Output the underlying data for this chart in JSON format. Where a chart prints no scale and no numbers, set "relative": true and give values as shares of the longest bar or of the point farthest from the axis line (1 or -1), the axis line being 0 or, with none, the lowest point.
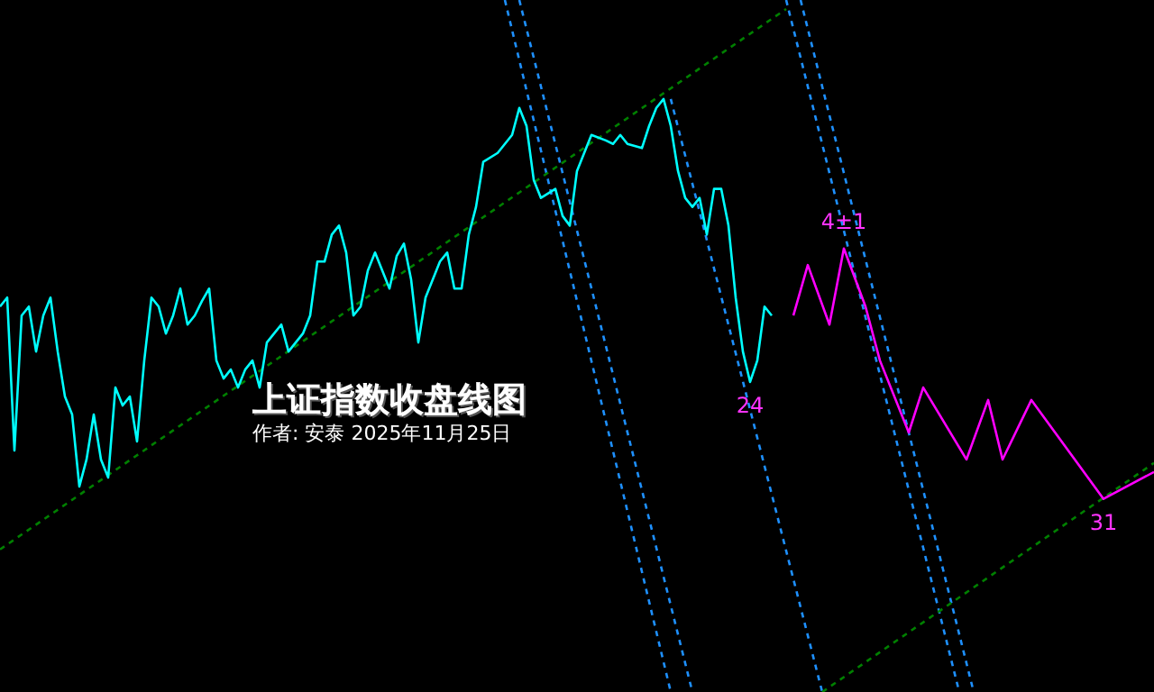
{
  "chart_data": {
    "type": "line",
    "title": "上证指数收盘线图",
    "subtitle": "作者: 安泰 2025年11月25日",
    "relative": true,
    "tick_labels": false,
    "categories": [
      null,
      null,
      null,
      null,
      null,
      null,
      null,
      null,
      null,
      null,
      null,
      null,
      null,
      null,
      null,
      null,
      null,
      null,
      null,
      null,
      null,
      null,
      null,
      null,
      null,
      null,
      null,
      null,
      null,
      null,
      null,
      null,
      null,
      null,
      null,
      null,
      null,
      null,
      null,
      null,
      null,
      null,
      null,
      null,
      null,
      null,
      null,
      null,
      null,
      null,
      null,
      null,
      null,
      null,
      null,
      null,
      null,
      null,
      null,
      null,
      null,
      null,
      null,
      null,
      null,
      null,
      null,
      null,
      null,
      null,
      null,
      null,
      null,
      null,
      null,
      null,
      null,
      null,
      null,
      null,
      null,
      null,
      null,
      null,
      null,
      null,
      null,
      null,
      null,
      null,
      null,
      null,
      null,
      null,
      null,
      null,
      null,
      null,
      null,
      null,
      null,
      null,
      null,
      null,
      null,
      null,
      null,
      null,
      null,
      null,
      null,
      null,
      null,
      null,
      null,
      null,
      null,
      null,
      null,
      null,
      null,
      null,
      null,
      null,
      null,
      null,
      null,
      null,
      null,
      null,
      null,
      null,
      null,
      null,
      null,
      null,
      null,
      null,
      null,
      null,
      null,
      null,
      null,
      null,
      null,
      null,
      null,
      null,
      null,
      null,
      null,
      null,
      null,
      null,
      null,
      null,
      null,
      null,
      null,
      null,
      null
    ],
    "series": [
      {
        "color": "#00ffff",
        "line_style": "solid",
        "values": [
          0.557,
          0.57,
          0.349,
          0.544,
          0.557,
          0.492,
          0.544,
          0.57,
          0.492,
          0.427,
          0.401,
          0.297,
          0.336,
          0.401,
          0.336,
          0.31,
          0.44,
          0.414,
          0.427,
          0.362,
          0.479,
          0.57,
          0.557,
          0.518,
          0.544,
          0.583,
          0.531,
          0.544,
          0.565,
          0.583,
          0.479,
          0.453,
          0.466,
          0.44,
          0.466,
          0.479,
          0.44,
          0.505,
          0.518,
          0.531,
          0.492,
          0.505,
          0.518,
          0.544,
          0.622,
          0.622,
          0.661,
          0.674,
          0.635,
          0.544,
          0.557,
          0.609,
          0.635,
          null,
          0.583,
          0.63,
          0.648,
          0.596,
          0.505,
          0.57,
          null,
          0.622,
          0.635,
          0.583,
          0.583,
          0.661,
          0.701,
          0.766,
          null,
          0.779,
          0.792,
          0.805,
          0.844,
          0.818,
          0.74,
          0.714,
          null,
          0.727,
          0.688,
          0.674,
          0.753,
          0.779,
          0.805,
          null,
          0.797,
          0.792,
          0.805,
          0.792,
          null,
          0.786,
          0.818,
          0.844,
          0.857,
          0.818,
          0.753,
          0.714,
          0.701,
          0.714,
          0.661,
          0.727,
          0.727,
          0.674,
          0.57,
          0.492,
          0.448,
          0.479,
          0.557,
          0.544,
          null,
          null,
          null,
          null,
          null,
          null,
          null,
          null,
          null,
          null,
          null,
          null,
          null,
          null,
          null,
          null,
          null,
          null,
          null,
          null,
          null,
          null,
          null,
          null,
          null,
          null,
          null,
          null,
          null,
          null,
          null,
          null,
          null,
          null,
          null,
          null,
          null,
          null,
          null,
          null,
          null,
          null,
          null,
          null,
          null,
          null,
          null,
          null,
          null,
          null,
          null,
          null,
          null
        ]
      },
      {
        "color": "#ff00ff",
        "line_style": "solid",
        "values": [
          null,
          null,
          null,
          null,
          null,
          null,
          null,
          null,
          null,
          null,
          null,
          null,
          null,
          null,
          null,
          null,
          null,
          null,
          null,
          null,
          null,
          null,
          null,
          null,
          null,
          null,
          null,
          null,
          null,
          null,
          null,
          null,
          null,
          null,
          null,
          null,
          null,
          null,
          null,
          null,
          null,
          null,
          null,
          null,
          null,
          null,
          null,
          null,
          null,
          null,
          null,
          null,
          null,
          null,
          null,
          null,
          null,
          null,
          null,
          null,
          null,
          null,
          null,
          null,
          null,
          null,
          null,
          null,
          null,
          null,
          null,
          null,
          null,
          null,
          null,
          null,
          null,
          null,
          null,
          null,
          null,
          null,
          null,
          null,
          null,
          null,
          null,
          null,
          null,
          null,
          null,
          null,
          null,
          null,
          null,
          null,
          null,
          null,
          null,
          null,
          null,
          null,
          null,
          null,
          null,
          null,
          null,
          null,
          null,
          null,
          0.544,
          null,
          0.617,
          null,
          null,
          0.531,
          null,
          0.641,
          null,
          null,
          0.557,
          null,
          0.479,
          null,
          null,
          null,
          0.375,
          null,
          0.44,
          null,
          null,
          null,
          null,
          null,
          0.336,
          null,
          null,
          0.422,
          null,
          0.336,
          null,
          null,
          null,
          0.422,
          null,
          null,
          null,
          null,
          null,
          null,
          null,
          null,
          null,
          0.279,
          null,
          null,
          null,
          null,
          null,
          null,
          0.318
        ]
      },
      {
        "color": "#008000",
        "line_style": "dashed",
        "values": [
          0.206,
          null,
          null,
          null,
          null,
          null,
          null,
          null,
          null,
          null,
          null,
          null,
          null,
          null,
          null,
          null,
          null,
          null,
          null,
          null,
          null,
          null,
          null,
          null,
          null,
          null,
          null,
          null,
          null,
          null,
          null,
          null,
          null,
          null,
          null,
          null,
          null,
          null,
          null,
          null,
          null,
          null,
          null,
          null,
          null,
          null,
          null,
          null,
          null,
          null,
          null,
          null,
          null,
          null,
          null,
          null,
          null,
          null,
          null,
          null,
          null,
          null,
          null,
          null,
          null,
          null,
          null,
          null,
          null,
          null,
          null,
          null,
          null,
          null,
          null,
          null,
          null,
          null,
          null,
          null,
          null,
          null,
          null,
          null,
          null,
          null,
          null,
          null,
          null,
          null,
          null,
          null,
          null,
          null,
          null,
          null,
          null,
          null,
          null,
          null,
          null,
          null,
          null,
          null,
          null,
          null,
          null,
          null,
          null,
          0.987,
          null,
          null,
          null,
          null,
          null,
          null,
          null,
          null,
          null,
          null,
          null,
          null,
          null,
          null,
          null,
          null,
          null,
          null,
          null,
          null,
          null,
          null,
          null,
          null,
          null,
          null,
          null,
          null,
          null,
          null,
          null,
          null,
          null,
          null,
          null,
          null,
          null,
          null,
          null,
          null,
          null,
          null,
          null,
          null,
          null,
          null,
          null,
          null,
          null,
          null,
          null
        ]
      },
      {
        "color": "#008000",
        "line_style": "dashed",
        "values": [
          null,
          null,
          null,
          null,
          null,
          null,
          null,
          null,
          null,
          null,
          null,
          null,
          null,
          null,
          null,
          null,
          null,
          null,
          null,
          null,
          null,
          null,
          null,
          null,
          null,
          null,
          null,
          null,
          null,
          null,
          null,
          null,
          null,
          null,
          null,
          null,
          null,
          null,
          null,
          null,
          null,
          null,
          null,
          null,
          null,
          null,
          null,
          null,
          null,
          null,
          null,
          null,
          null,
          null,
          null,
          null,
          null,
          null,
          null,
          null,
          null,
          null,
          null,
          null,
          null,
          null,
          null,
          null,
          null,
          null,
          null,
          null,
          null,
          null,
          null,
          null,
          null,
          null,
          null,
          null,
          null,
          null,
          null,
          null,
          null,
          null,
          null,
          null,
          null,
          null,
          null,
          null,
          null,
          null,
          null,
          null,
          null,
          null,
          null,
          null,
          null,
          null,
          null,
          null,
          null,
          null,
          null,
          null,
          null,
          null,
          null,
          null,
          null,
          null,
          0,
          null,
          null,
          null,
          null,
          null,
          null,
          null,
          null,
          null,
          null,
          null,
          null,
          null,
          null,
          null,
          null,
          null,
          null,
          null,
          null,
          null,
          null,
          null,
          null,
          null,
          null,
          null,
          null,
          null,
          null,
          null,
          null,
          null,
          null,
          null,
          null,
          null,
          null,
          null,
          null,
          null,
          null,
          null,
          null,
          null,
          0.331
        ]
      },
      {
        "color": "#1e90ff",
        "line_style": "dashed",
        "values": [
          null,
          null,
          null,
          null,
          null,
          null,
          null,
          null,
          null,
          null,
          null,
          null,
          null,
          null,
          null,
          null,
          null,
          null,
          null,
          null,
          null,
          null,
          null,
          null,
          null,
          null,
          null,
          null,
          null,
          null,
          null,
          null,
          null,
          null,
          null,
          null,
          null,
          null,
          null,
          null,
          null,
          null,
          null,
          null,
          null,
          null,
          null,
          null,
          null,
          null,
          null,
          null,
          null,
          null,
          null,
          null,
          null,
          null,
          null,
          null,
          null,
          null,
          null,
          null,
          null,
          null,
          null,
          null,
          null,
          null,
          1,
          null,
          null,
          null,
          null,
          null,
          null,
          null,
          null,
          null,
          null,
          null,
          null,
          null,
          null,
          null,
          null,
          null,
          null,
          null,
          null,
          null,
          null,
          0,
          null,
          null,
          null,
          null,
          null,
          null,
          null,
          null,
          null,
          null,
          null,
          null,
          null,
          null,
          null,
          null,
          null,
          null,
          null,
          null,
          null,
          null,
          null,
          null,
          null,
          null,
          null,
          null,
          null,
          null,
          null,
          null,
          null,
          null,
          null,
          null,
          null,
          null,
          null,
          null,
          null,
          null,
          null,
          null,
          null,
          null,
          null,
          null,
          null,
          null,
          null,
          null,
          null,
          null,
          null,
          null,
          null,
          null,
          null,
          null,
          null,
          null,
          null,
          null,
          null,
          null,
          null
        ]
      },
      {
        "color": "#1e90ff",
        "line_style": "dashed",
        "values": [
          null,
          null,
          null,
          null,
          null,
          null,
          null,
          null,
          null,
          null,
          null,
          null,
          null,
          null,
          null,
          null,
          null,
          null,
          null,
          null,
          null,
          null,
          null,
          null,
          null,
          null,
          null,
          null,
          null,
          null,
          null,
          null,
          null,
          null,
          null,
          null,
          null,
          null,
          null,
          null,
          null,
          null,
          null,
          null,
          null,
          null,
          null,
          null,
          null,
          null,
          null,
          null,
          null,
          null,
          null,
          null,
          null,
          null,
          null,
          null,
          null,
          null,
          null,
          null,
          null,
          null,
          null,
          null,
          null,
          null,
          null,
          null,
          1,
          null,
          null,
          null,
          null,
          null,
          null,
          null,
          null,
          null,
          null,
          null,
          null,
          null,
          null,
          null,
          null,
          null,
          null,
          null,
          null,
          null,
          null,
          null,
          0,
          null,
          null,
          null,
          null,
          null,
          null,
          null,
          null,
          null,
          null,
          null,
          null,
          null,
          null,
          null,
          null,
          null,
          null,
          null,
          null,
          null,
          null,
          null,
          null,
          null,
          null,
          null,
          null,
          null,
          null,
          null,
          null,
          null,
          null,
          null,
          null,
          null,
          null,
          null,
          null,
          null,
          null,
          null,
          null,
          null,
          null,
          null,
          null,
          null,
          null,
          null,
          null,
          null,
          null,
          null,
          null,
          null,
          null,
          null,
          null,
          null,
          null,
          null,
          null
        ]
      },
      {
        "color": "#1e90ff",
        "line_style": "dashed",
        "values": [
          null,
          null,
          null,
          null,
          null,
          null,
          null,
          null,
          null,
          null,
          null,
          null,
          null,
          null,
          null,
          null,
          null,
          null,
          null,
          null,
          null,
          null,
          null,
          null,
          null,
          null,
          null,
          null,
          null,
          null,
          null,
          null,
          null,
          null,
          null,
          null,
          null,
          null,
          null,
          null,
          null,
          null,
          null,
          null,
          null,
          null,
          null,
          null,
          null,
          null,
          null,
          null,
          null,
          null,
          null,
          null,
          null,
          null,
          null,
          null,
          null,
          null,
          null,
          null,
          null,
          null,
          null,
          null,
          null,
          null,
          null,
          null,
          null,
          null,
          null,
          null,
          null,
          null,
          null,
          null,
          null,
          null,
          null,
          null,
          null,
          null,
          null,
          null,
          null,
          null,
          null,
          null,
          null,
          null,
          null,
          null,
          null,
          null,
          null,
          null,
          null,
          null,
          null,
          null,
          null,
          null,
          null,
          null,
          null,
          1,
          null,
          null,
          null,
          null,
          null,
          null,
          null,
          null,
          null,
          null,
          null,
          null,
          null,
          null,
          null,
          null,
          null,
          null,
          null,
          null,
          null,
          null,
          null,
          0,
          null,
          null,
          null,
          null,
          null,
          null,
          null,
          null,
          null,
          null,
          null,
          null,
          null,
          null,
          null,
          null,
          null,
          null,
          null,
          null,
          null,
          null,
          null,
          null,
          null,
          null,
          null
        ]
      },
      {
        "color": "#1e90ff",
        "line_style": "dashed",
        "values": [
          null,
          null,
          null,
          null,
          null,
          null,
          null,
          null,
          null,
          null,
          null,
          null,
          null,
          null,
          null,
          null,
          null,
          null,
          null,
          null,
          null,
          null,
          null,
          null,
          null,
          null,
          null,
          null,
          null,
          null,
          null,
          null,
          null,
          null,
          null,
          null,
          null,
          null,
          null,
          null,
          null,
          null,
          null,
          null,
          null,
          null,
          null,
          null,
          null,
          null,
          null,
          null,
          null,
          null,
          null,
          null,
          null,
          null,
          null,
          null,
          null,
          null,
          null,
          null,
          null,
          null,
          null,
          null,
          null,
          null,
          null,
          null,
          null,
          null,
          null,
          null,
          null,
          null,
          null,
          null,
          null,
          null,
          null,
          null,
          null,
          null,
          null,
          null,
          null,
          null,
          null,
          null,
          null,
          null,
          null,
          null,
          null,
          null,
          null,
          null,
          null,
          null,
          null,
          null,
          null,
          null,
          null,
          null,
          null,
          null,
          null,
          1,
          null,
          null,
          null,
          null,
          null,
          null,
          null,
          null,
          null,
          null,
          null,
          null,
          null,
          null,
          null,
          null,
          null,
          null,
          null,
          null,
          null,
          null,
          null,
          0,
          null,
          null,
          null,
          null,
          null,
          null,
          null,
          null,
          null,
          null,
          null,
          null,
          null,
          null,
          null,
          null,
          null,
          null,
          null,
          null,
          null,
          null,
          null,
          null,
          null
        ]
      },
      {
        "color": "#1e90ff",
        "line_style": "dashed",
        "values": [
          null,
          null,
          null,
          null,
          null,
          null,
          null,
          null,
          null,
          null,
          null,
          null,
          null,
          null,
          null,
          null,
          null,
          null,
          null,
          null,
          null,
          null,
          null,
          null,
          null,
          null,
          null,
          null,
          null,
          null,
          null,
          null,
          null,
          null,
          null,
          null,
          null,
          null,
          null,
          null,
          null,
          null,
          null,
          null,
          null,
          null,
          null,
          null,
          null,
          null,
          null,
          null,
          null,
          null,
          null,
          null,
          null,
          null,
          null,
          null,
          null,
          null,
          null,
          null,
          null,
          null,
          null,
          null,
          null,
          null,
          null,
          null,
          null,
          null,
          null,
          null,
          null,
          null,
          null,
          null,
          null,
          null,
          null,
          null,
          null,
          null,
          null,
          null,
          null,
          null,
          null,
          null,
          null,
          0.857,
          null,
          null,
          null,
          null,
          null,
          null,
          null,
          null,
          null,
          null,
          null,
          null,
          null,
          null,
          null,
          null,
          null,
          null,
          null,
          null,
          0,
          null,
          null,
          null,
          null,
          null,
          null,
          null,
          null,
          null,
          null,
          null,
          null,
          null,
          null,
          null,
          null,
          null,
          null,
          null,
          null,
          null,
          null,
          null,
          null,
          null,
          null,
          null,
          null,
          null,
          null,
          null,
          null,
          null,
          null,
          null,
          null,
          null,
          null,
          null,
          null,
          null,
          null,
          null,
          null,
          null,
          null
        ]
      }
    ],
    "annotations": [
      {
        "text": "4±1",
        "y": 0.641
      },
      {
        "text": "24",
        "y": 0.448
      },
      {
        "text": "31",
        "y": 0.279
      }
    ]
  }
}
